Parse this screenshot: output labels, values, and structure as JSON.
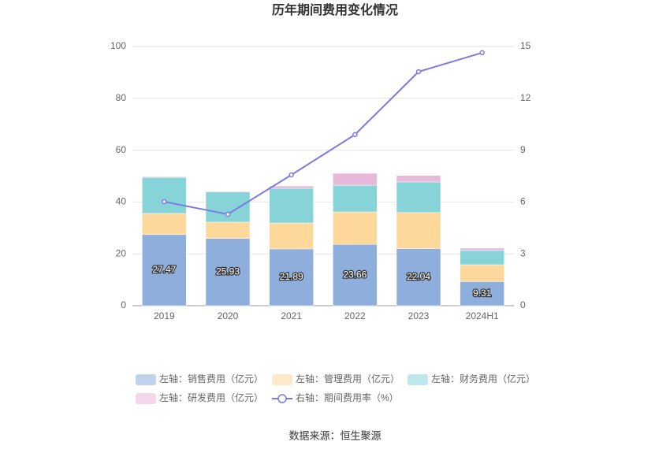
{
  "chart_data": {
    "type": "bar",
    "stacked": true,
    "title": "历年期间费用变化情况",
    "categories": [
      "2019",
      "2020",
      "2021",
      "2022",
      "2023",
      "2024H1"
    ],
    "series": [
      {
        "name": "左轴：销售费用（亿元）",
        "color": "#8eaedb",
        "values": [
          27.47,
          25.93,
          21.89,
          23.66,
          22.04,
          9.31
        ],
        "show_labels": true
      },
      {
        "name": "左轴：管理费用（亿元）",
        "color": "#fdd89a",
        "values": [
          8.1,
          6.3,
          10.0,
          12.5,
          13.9,
          6.5
        ]
      },
      {
        "name": "左轴：财务费用（亿元）",
        "color": "#86d4d8",
        "values": [
          13.9,
          11.6,
          13.4,
          10.3,
          11.8,
          5.5
        ]
      },
      {
        "name": "左轴：研发费用（亿元）",
        "color": "#e8b8d8",
        "values": [
          0.3,
          0.3,
          0.9,
          4.6,
          2.5,
          0.9
        ]
      },
      {
        "name": "右轴：期间费用率（%）",
        "color": "#7b7be0",
        "type": "line",
        "axis": "y2",
        "values": [
          6.02,
          5.29,
          7.57,
          9.9,
          13.54,
          14.64
        ]
      }
    ],
    "ylim": [
      0,
      100
    ],
    "yticks": [
      0,
      20,
      40,
      60,
      80,
      100
    ],
    "y2lim": [
      0,
      15
    ],
    "y2ticks": [
      0,
      3,
      6,
      9,
      12,
      15
    ],
    "grid": true,
    "legend": "bottom",
    "source": "数据来源：恒生聚源"
  }
}
